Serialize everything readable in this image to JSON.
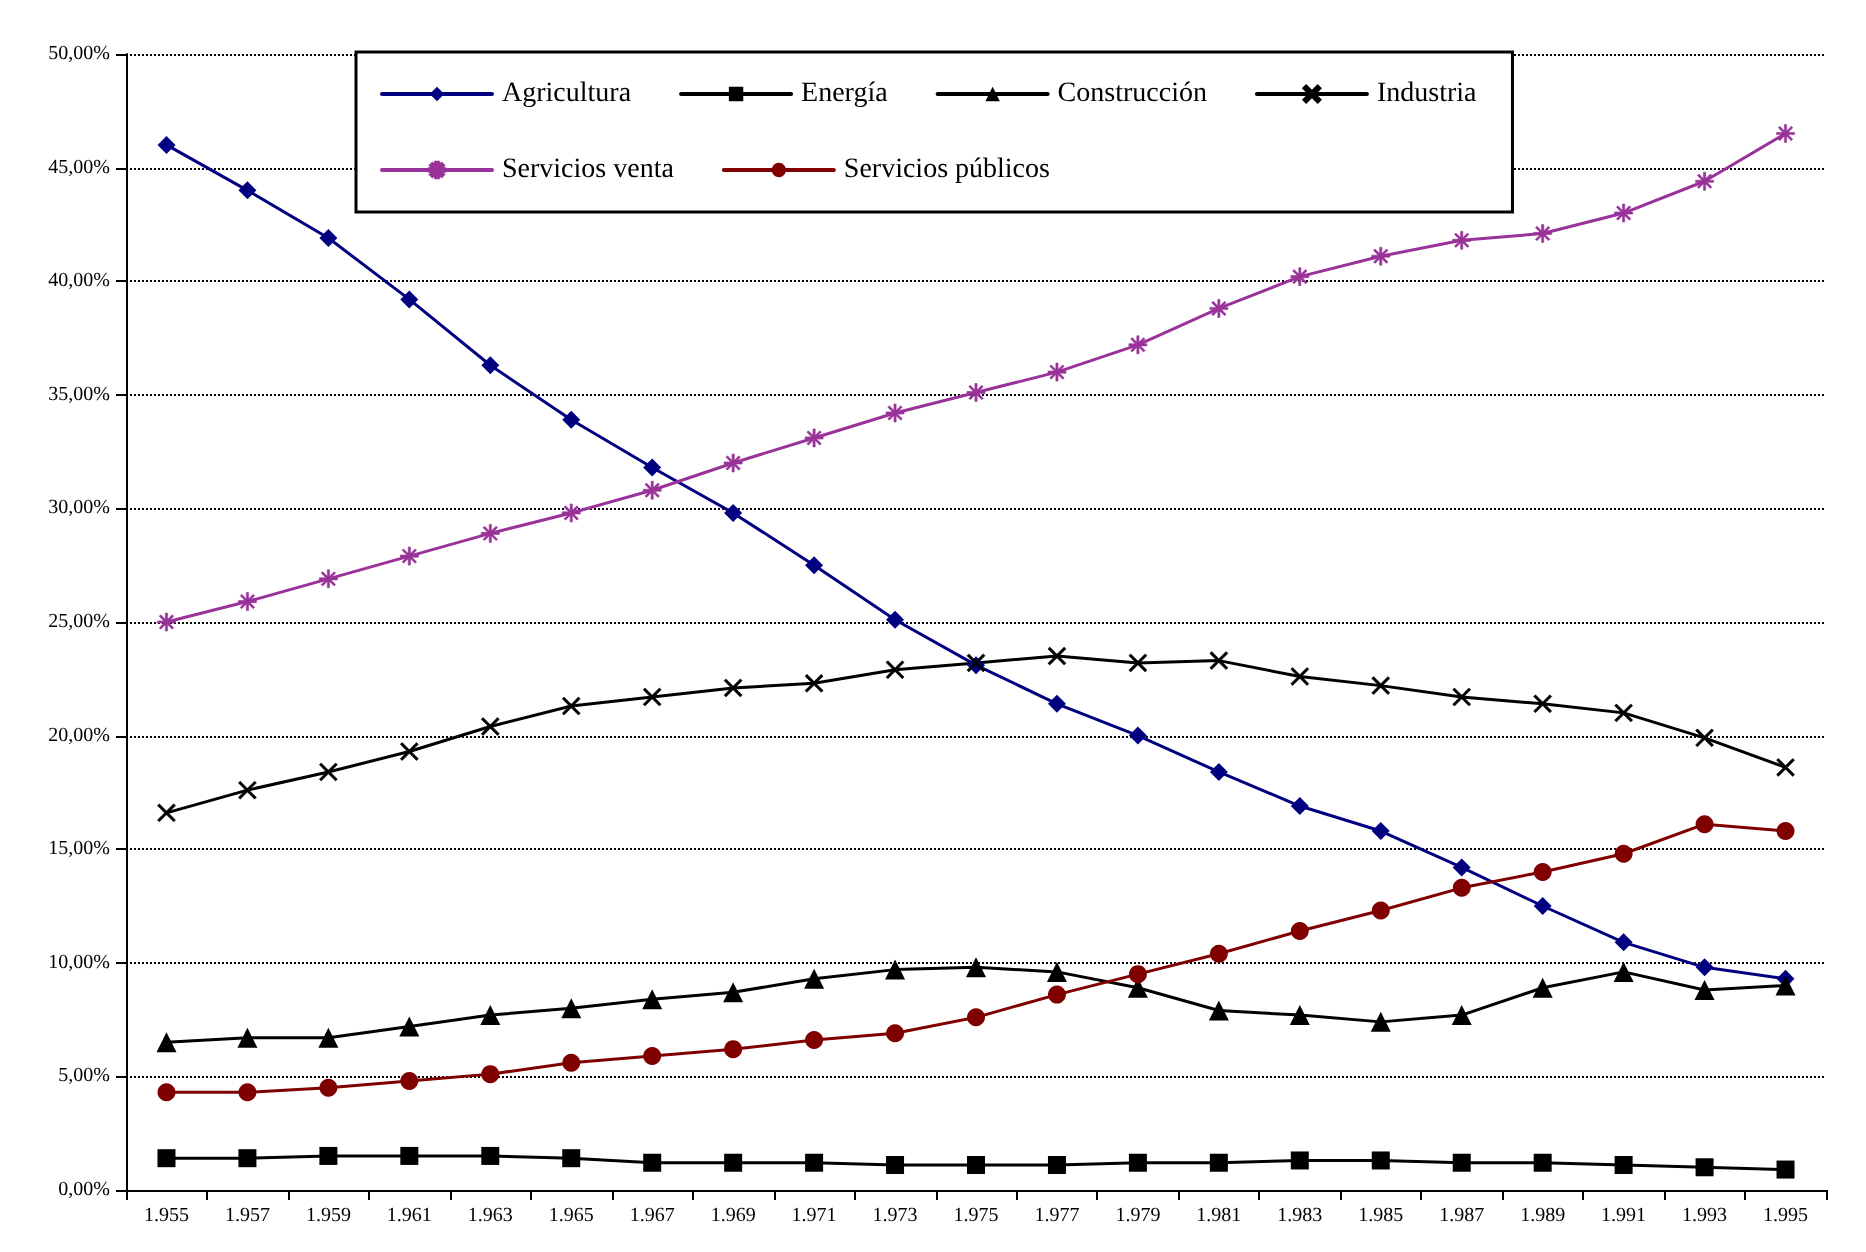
{
  "chart_data": {
    "type": "line",
    "categories": [
      "1.955",
      "1.957",
      "1.959",
      "1.961",
      "1.963",
      "1.965",
      "1.967",
      "1.969",
      "1.971",
      "1.973",
      "1.975",
      "1.977",
      "1.979",
      "1.981",
      "1.983",
      "1.985",
      "1.987",
      "1.989",
      "1.991",
      "1.993",
      "1.995"
    ],
    "series": [
      {
        "name": "Agricultura",
        "color": "#000080",
        "marker": "diamond",
        "values": [
          46.0,
          44.0,
          41.9,
          39.2,
          36.3,
          33.9,
          31.8,
          29.8,
          27.5,
          25.1,
          23.1,
          21.4,
          20.0,
          18.4,
          16.9,
          15.8,
          14.2,
          12.5,
          10.9,
          9.8,
          9.3
        ]
      },
      {
        "name": "Energía",
        "color": "#000000",
        "marker": "square",
        "values": [
          1.4,
          1.4,
          1.5,
          1.5,
          1.5,
          1.4,
          1.2,
          1.2,
          1.2,
          1.1,
          1.1,
          1.1,
          1.2,
          1.2,
          1.3,
          1.3,
          1.2,
          1.2,
          1.1,
          1.0,
          0.9
        ]
      },
      {
        "name": "Construcción",
        "color": "#000000",
        "marker": "triangle",
        "values": [
          6.5,
          6.7,
          6.7,
          7.2,
          7.7,
          8.0,
          8.4,
          8.7,
          9.3,
          9.7,
          9.8,
          9.6,
          8.9,
          7.9,
          7.7,
          7.4,
          7.7,
          8.9,
          9.6,
          8.8,
          9.0
        ]
      },
      {
        "name": "Industria",
        "color": "#000000",
        "marker": "cross",
        "values": [
          16.6,
          17.6,
          18.4,
          19.3,
          20.4,
          21.3,
          21.7,
          22.1,
          22.3,
          22.9,
          23.2,
          23.5,
          23.2,
          23.3,
          22.6,
          22.2,
          21.7,
          21.4,
          21.0,
          19.9,
          18.6
        ]
      },
      {
        "name": "Servicios venta",
        "color": "#993399",
        "marker": "star",
        "values": [
          25.0,
          25.9,
          26.9,
          27.9,
          28.9,
          29.8,
          30.8,
          32.0,
          33.1,
          34.2,
          35.1,
          36.0,
          37.2,
          38.8,
          40.2,
          41.1,
          41.8,
          42.1,
          43.0,
          44.4,
          46.5
        ]
      },
      {
        "name": "Servicios públicos",
        "color": "#800000",
        "marker": "circle",
        "values": [
          4.3,
          4.3,
          4.5,
          4.8,
          5.1,
          5.6,
          5.9,
          6.2,
          6.6,
          6.9,
          7.6,
          8.6,
          9.5,
          10.4,
          11.4,
          12.3,
          13.3,
          14.0,
          14.8,
          16.1,
          15.8
        ]
      }
    ],
    "ylim": [
      0,
      50
    ],
    "yticks": [
      {
        "value": 0,
        "label": "0,00%"
      },
      {
        "value": 5,
        "label": "5,00%"
      },
      {
        "value": 10,
        "label": "10,00%"
      },
      {
        "value": 15,
        "label": "15,00%"
      },
      {
        "value": 20,
        "label": "20,00%"
      },
      {
        "value": 25,
        "label": "25,00%"
      },
      {
        "value": 30,
        "label": "30,00%"
      },
      {
        "value": 35,
        "label": "35,00%"
      },
      {
        "value": 40,
        "label": "40,00%"
      },
      {
        "value": 45,
        "label": "45,00%"
      },
      {
        "value": 50,
        "label": "50,00%"
      }
    ],
    "grid": "y",
    "legend": "top",
    "line_style": "solid"
  }
}
